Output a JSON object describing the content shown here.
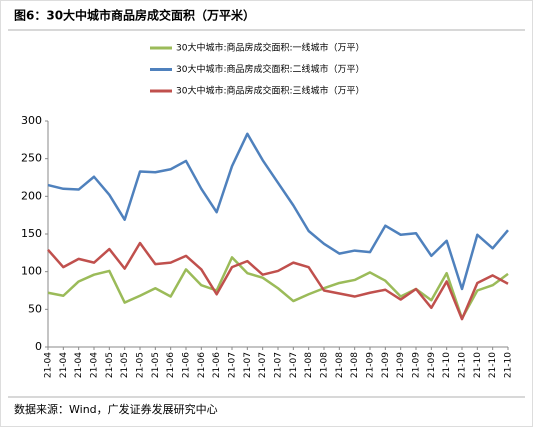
{
  "chart_data": {
    "type": "line",
    "title": "图6：30大中城市商品房成交面积（万平米）",
    "source": "数据来源：Wind，广发证券发展研究中心",
    "categories": [
      "21-04",
      "21-04",
      "21-04",
      "21-04",
      "21-05",
      "21-05",
      "21-05",
      "21-05",
      "21-06",
      "21-06",
      "21-06",
      "21-06",
      "21-07",
      "21-07",
      "21-07",
      "21-07",
      "21-07",
      "21-08",
      "21-08",
      "21-08",
      "21-08",
      "21-09",
      "21-09",
      "21-09",
      "21-09",
      "21-09",
      "21-10",
      "21-10",
      "21-10",
      "21-10",
      "21-10"
    ],
    "series": [
      {
        "name": "30大中城市:商品房成交面积:一线城市（万平）",
        "color": "#9bbb59",
        "values": [
          72,
          68,
          87,
          96,
          101,
          59,
          68,
          78,
          67,
          103,
          82,
          75,
          119,
          98,
          92,
          78,
          61,
          70,
          78,
          85,
          89,
          99,
          88,
          67,
          77,
          62,
          98,
          38,
          75,
          82,
          97
        ]
      },
      {
        "name": "30大中城市:商品房成交面积:二线城市（万平）",
        "color": "#4f81bd",
        "values": [
          215,
          210,
          209,
          226,
          202,
          169,
          233,
          232,
          236,
          247,
          210,
          179,
          240,
          283,
          248,
          218,
          188,
          154,
          137,
          124,
          128,
          126,
          161,
          149,
          151,
          121,
          141,
          77,
          149,
          131,
          155
        ]
      },
      {
        "name": "30大中城市:商品房成交面积:三线城市（万平）",
        "color": "#c0504d",
        "values": [
          129,
          106,
          117,
          112,
          130,
          104,
          138,
          110,
          112,
          121,
          103,
          70,
          106,
          114,
          96,
          101,
          112,
          106,
          75,
          71,
          67,
          72,
          76,
          63,
          77,
          52,
          87,
          37,
          85,
          95,
          84
        ]
      }
    ],
    "ylim": [
      0,
      300
    ],
    "yticks": [
      0,
      50,
      100,
      150,
      200,
      250,
      300
    ]
  }
}
